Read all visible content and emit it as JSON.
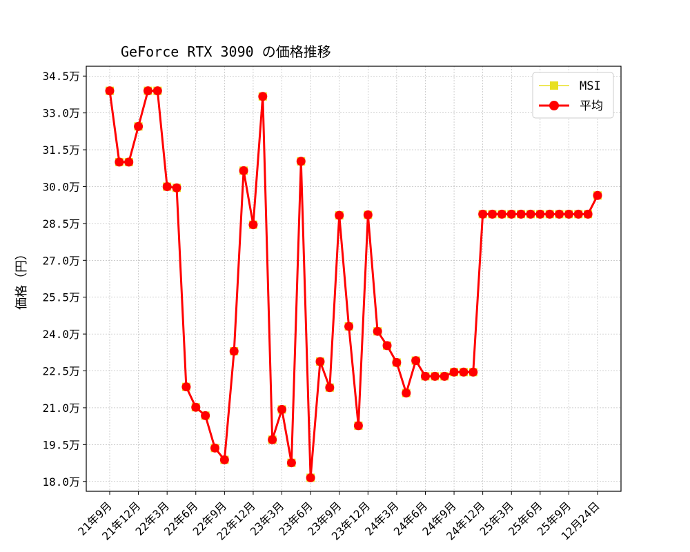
{
  "chart_data": {
    "type": "line",
    "title": "GeForce RTX 3090 の価格推移",
    "ylabel": "価格（円）",
    "xlabel": "",
    "ylim": [
      176000,
      349000
    ],
    "yticks": [
      180000,
      195000,
      210000,
      225000,
      240000,
      255000,
      270000,
      285000,
      300000,
      315000,
      330000,
      345000
    ],
    "ytick_labels": [
      "18.0万",
      "19.5万",
      "21.0万",
      "22.5万",
      "24.0万",
      "25.5万",
      "27.0万",
      "28.5万",
      "30.0万",
      "31.5万",
      "33.0万",
      "34.5万"
    ],
    "xtick_labels": [
      "21年9月",
      "21年12月",
      "22年3月",
      "22年6月",
      "22年9月",
      "22年12月",
      "23年3月",
      "23年6月",
      "23年9月",
      "23年12月",
      "24年3月",
      "24年6月",
      "24年9月",
      "24年12月",
      "25年3月",
      "25年6月",
      "25年9月",
      "12月24日"
    ],
    "xtick_positions": [
      0,
      3,
      6,
      9,
      12,
      15,
      18,
      21,
      24,
      27,
      30,
      33,
      36,
      39,
      42,
      45,
      48,
      51
    ],
    "grid": true,
    "legend_position": "top-right",
    "x": [
      0,
      1,
      2,
      3,
      4,
      5,
      6,
      7,
      8,
      9,
      10,
      11,
      12,
      13,
      14,
      15,
      16,
      17,
      18,
      19,
      20,
      21,
      22,
      23,
      24,
      25,
      26,
      27,
      28,
      29,
      30,
      31,
      32,
      33,
      34,
      35,
      36,
      37,
      38,
      39,
      40,
      41,
      42,
      43,
      44,
      45,
      46,
      47,
      48,
      49,
      50,
      51
    ],
    "series": [
      {
        "name": "MSI",
        "color": "#e8e020",
        "marker": "square",
        "values": [
          339000,
          310000,
          310000,
          324500,
          339000,
          339000,
          300000,
          299500,
          218500,
          210200,
          206800,
          193600,
          188800,
          233000,
          306500,
          284500,
          336700,
          197000,
          209300,
          187600,
          310300,
          181500,
          228800,
          218200,
          288300,
          243100,
          202700,
          288500,
          241100,
          235300,
          228400,
          216000,
          229200,
          222800,
          222800,
          222800,
          224500,
          224500,
          224500,
          288800,
          288800,
          288800,
          288800,
          288800,
          288800,
          288800,
          288800,
          288800,
          288800,
          288800,
          288800,
          296400
        ]
      },
      {
        "name": "平均",
        "color": "#ff0000",
        "marker": "circle",
        "values": [
          339000,
          310000,
          310000,
          324500,
          339000,
          339000,
          300000,
          299500,
          218500,
          210200,
          206800,
          193600,
          188800,
          233000,
          306500,
          284500,
          336700,
          197000,
          209300,
          187600,
          310300,
          181500,
          228800,
          218200,
          288300,
          243100,
          202700,
          288500,
          241100,
          235300,
          228400,
          216000,
          229200,
          222800,
          222800,
          222800,
          224500,
          224500,
          224500,
          288800,
          288800,
          288800,
          288800,
          288800,
          288800,
          288800,
          288800,
          288800,
          288800,
          288800,
          288800,
          296400
        ]
      }
    ]
  }
}
